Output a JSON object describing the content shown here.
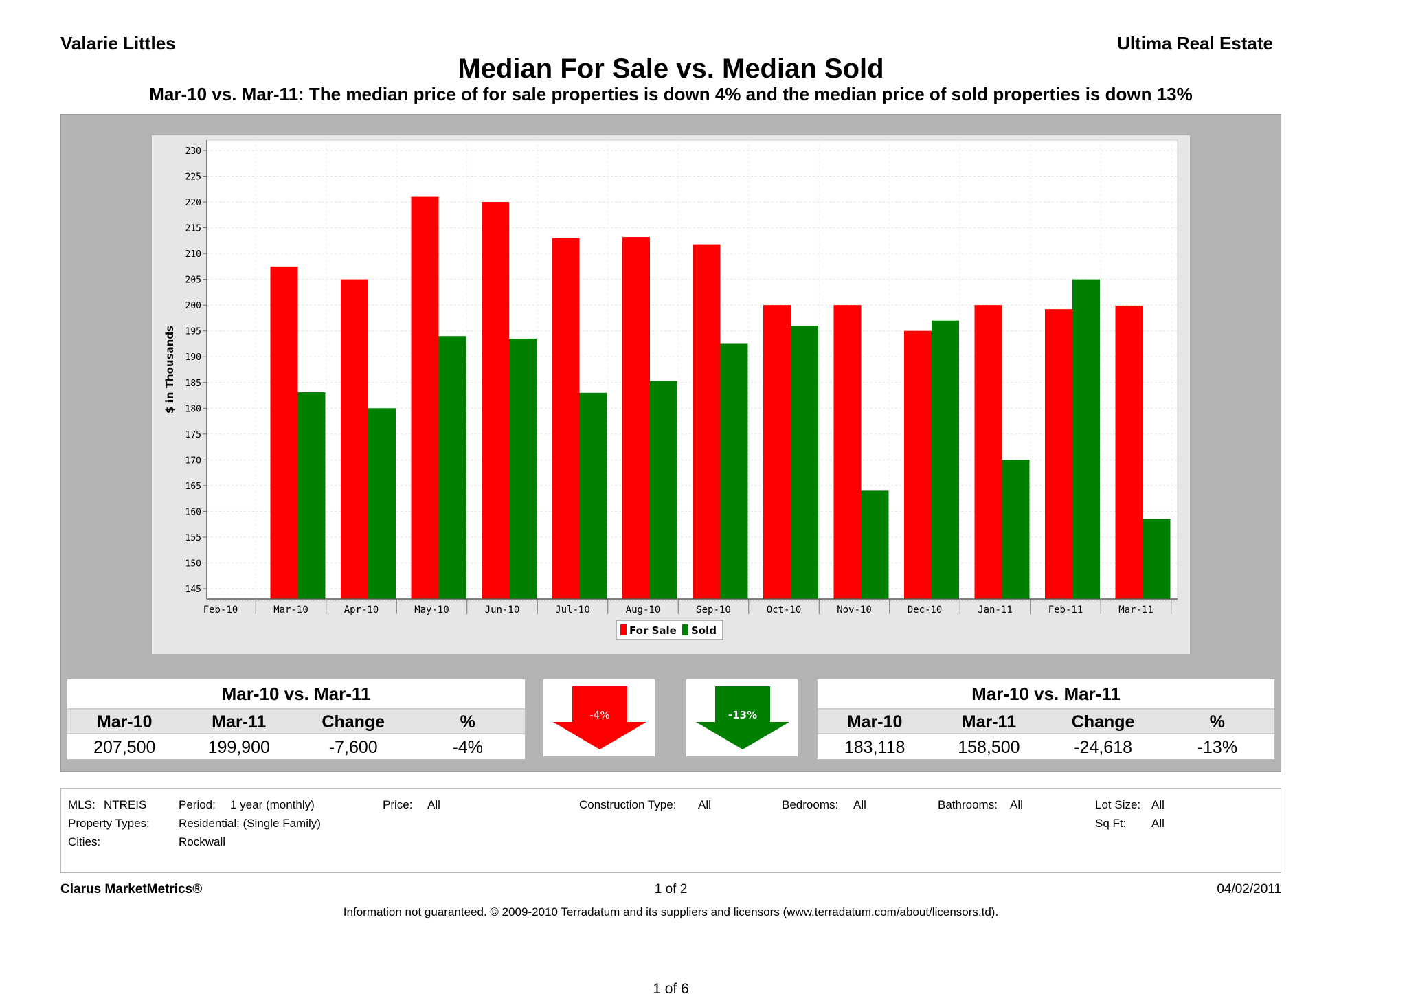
{
  "header": {
    "agent": "Valarie Littles",
    "company": "Ultima Real Estate",
    "title": "Median For Sale vs. Median Sold",
    "subtitle": "Mar-10 vs. Mar-11:  The median price of for sale properties is down 4% and the median price of sold properties is down 13%"
  },
  "chart_data": {
    "type": "bar",
    "categories": [
      "Feb-10",
      "Mar-10",
      "Apr-10",
      "May-10",
      "Jun-10",
      "Jul-10",
      "Aug-10",
      "Sep-10",
      "Oct-10",
      "Nov-10",
      "Dec-10",
      "Jan-11",
      "Feb-11",
      "Mar-11"
    ],
    "series": [
      {
        "name": "For Sale",
        "color": "#ff0000",
        "values": [
          null,
          207.5,
          205,
          221,
          220,
          213,
          213.2,
          211.8,
          200,
          200,
          195,
          200,
          199.2,
          199.9
        ]
      },
      {
        "name": "Sold",
        "color": "#008000",
        "values": [
          null,
          183.1,
          180,
          194,
          193.5,
          183,
          185.3,
          192.5,
          196,
          164,
          197,
          170,
          205,
          158.5
        ]
      }
    ],
    "ylabel": "$ in Thousands",
    "xlabel": "",
    "ylim": [
      143,
      232
    ],
    "yticks": [
      145,
      150,
      155,
      160,
      165,
      170,
      175,
      180,
      185,
      190,
      195,
      200,
      205,
      210,
      215,
      220,
      225,
      230
    ],
    "legend_position": "bottom-center"
  },
  "for_sale_stats": {
    "title": "Mar-10 vs. Mar-11",
    "headers": [
      "Mar-10",
      "Mar-11",
      "Change",
      "%"
    ],
    "values": [
      "207,500",
      "199,900",
      "-7,600",
      "-4%"
    ],
    "arrow_label": "-4%",
    "arrow_color": "#ff0000"
  },
  "sold_stats": {
    "title": "Mar-10 vs. Mar-11",
    "headers": [
      "Mar-10",
      "Mar-11",
      "Change",
      "%"
    ],
    "values": [
      "183,118",
      "158,500",
      "-24,618",
      "-13%"
    ],
    "arrow_label": "-13%",
    "arrow_color": "#008000"
  },
  "criteria": {
    "mls_label": "MLS:",
    "mls_value": "NTREIS",
    "period_label": "Period:",
    "period_value": "1 year (monthly)",
    "price_label": "Price:",
    "price_value": "All",
    "construction_label": "Construction Type:",
    "construction_value": "All",
    "bedrooms_label": "Bedrooms:",
    "bedrooms_value": "All",
    "bathrooms_label": "Bathrooms:",
    "bathrooms_value": "All",
    "lotsize_label": "Lot Size:",
    "lotsize_value": "All",
    "proptypes_label": "Property Types:",
    "proptypes_value": "Residential: (Single Family)",
    "sqft_label": "Sq Ft:",
    "sqft_value": "All",
    "cities_label": "Cities:",
    "cities_value": "Rockwall"
  },
  "footer": {
    "brand": "Clarus MarketMetrics®",
    "page": "1 of 2",
    "date": "04/02/2011",
    "disclaimer": "Information not guaranteed.  © 2009-2010 Terradatum and its suppliers and licensors (www.terradatum.com/about/licensors.td).",
    "doc_page": "1 of 6"
  }
}
